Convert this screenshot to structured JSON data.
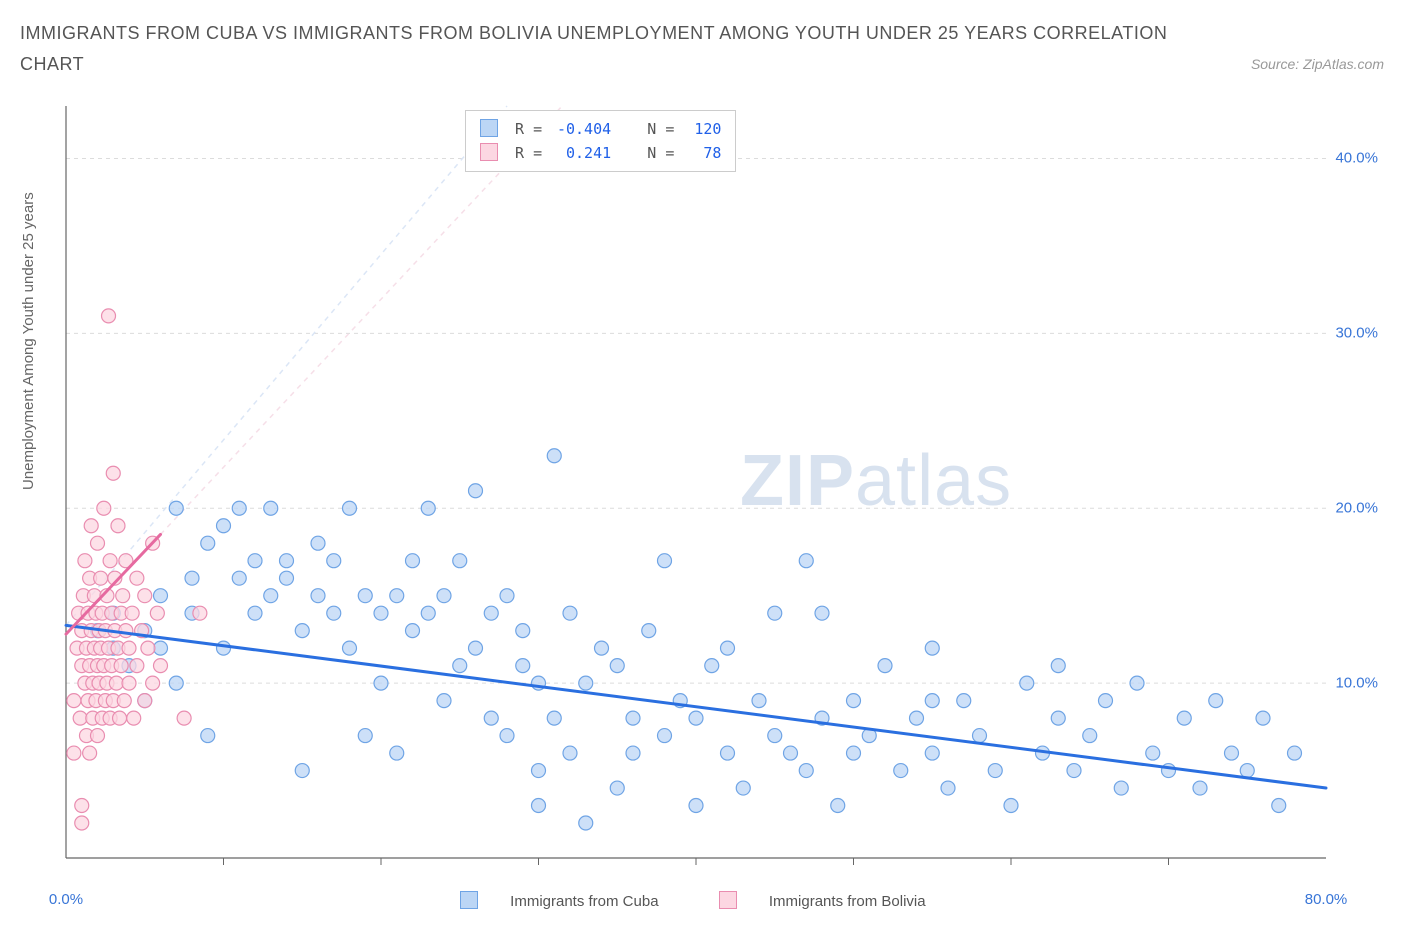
{
  "title": "IMMIGRANTS FROM CUBA VS IMMIGRANTS FROM BOLIVIA UNEMPLOYMENT AMONG YOUTH UNDER 25 YEARS CORRELATION CHART",
  "source_label": "Source: ZipAtlas.com",
  "ylabel": "Unemployment Among Youth under 25 years",
  "watermark_bold": "ZIP",
  "watermark_light": "atlas",
  "chart": {
    "type": "scatter",
    "xlim": [
      0,
      80
    ],
    "ylim": [
      0,
      43
    ],
    "xtick_labels": [
      "0.0%",
      "80.0%"
    ],
    "xtick_positions": [
      0,
      80
    ],
    "xtick_minor": [
      10,
      20,
      30,
      40,
      50,
      60,
      70
    ],
    "ytick_labels": [
      "10.0%",
      "20.0%",
      "30.0%",
      "40.0%"
    ],
    "ytick_positions": [
      10,
      20,
      30,
      40
    ],
    "axis_color": "#666666",
    "grid_color": "#dcdcdc",
    "tick_label_color": "#3875d7",
    "background_color": "#ffffff",
    "series": [
      {
        "name": "Immigrants from Cuba",
        "marker_fill": "#bcd6f5",
        "marker_stroke": "#6fa4e5",
        "marker_radius": 7,
        "trend_line_color": "#2a6fe0",
        "trend_line_width": 3,
        "trend_dash_color": "#dbe6f6",
        "trend": {
          "x1": 0,
          "y1": 13.3,
          "x2": 80,
          "y2": 4.0
        },
        "dashproj": {
          "x1": 0,
          "y1": 13.3,
          "x2": 28,
          "y2": 43
        },
        "legend_swatch_fill": "#bcd6f5",
        "legend_swatch_stroke": "#6fa4e5",
        "R": "-0.404",
        "N": "120",
        "points": [
          [
            2,
            13
          ],
          [
            3,
            12
          ],
          [
            3,
            14
          ],
          [
            4,
            11
          ],
          [
            5,
            13
          ],
          [
            5,
            9
          ],
          [
            6,
            12
          ],
          [
            6,
            15
          ],
          [
            7,
            10
          ],
          [
            7,
            20
          ],
          [
            8,
            14
          ],
          [
            8,
            16
          ],
          [
            9,
            7
          ],
          [
            9,
            18
          ],
          [
            10,
            19
          ],
          [
            10,
            12
          ],
          [
            11,
            16
          ],
          [
            11,
            20
          ],
          [
            12,
            14
          ],
          [
            12,
            17
          ],
          [
            13,
            20
          ],
          [
            13,
            15
          ],
          [
            14,
            16
          ],
          [
            14,
            17
          ],
          [
            15,
            5
          ],
          [
            15,
            13
          ],
          [
            16,
            18
          ],
          [
            16,
            15
          ],
          [
            17,
            14
          ],
          [
            17,
            17
          ],
          [
            18,
            20
          ],
          [
            18,
            12
          ],
          [
            19,
            15
          ],
          [
            19,
            7
          ],
          [
            20,
            10
          ],
          [
            20,
            14
          ],
          [
            21,
            15
          ],
          [
            21,
            6
          ],
          [
            22,
            17
          ],
          [
            22,
            13
          ],
          [
            23,
            20
          ],
          [
            23,
            14
          ],
          [
            24,
            9
          ],
          [
            24,
            15
          ],
          [
            25,
            11
          ],
          [
            25,
            17
          ],
          [
            26,
            21
          ],
          [
            26,
            12
          ],
          [
            27,
            14
          ],
          [
            27,
            8
          ],
          [
            28,
            7
          ],
          [
            28,
            15
          ],
          [
            29,
            11
          ],
          [
            29,
            13
          ],
          [
            30,
            5
          ],
          [
            30,
            10
          ],
          [
            31,
            23
          ],
          [
            31,
            8
          ],
          [
            32,
            14
          ],
          [
            32,
            6
          ],
          [
            33,
            10
          ],
          [
            33,
            2
          ],
          [
            34,
            12
          ],
          [
            35,
            4
          ],
          [
            35,
            11
          ],
          [
            36,
            8
          ],
          [
            36,
            6
          ],
          [
            37,
            13
          ],
          [
            38,
            7
          ],
          [
            38,
            17
          ],
          [
            39,
            9
          ],
          [
            40,
            8
          ],
          [
            40,
            3
          ],
          [
            41,
            11
          ],
          [
            42,
            6
          ],
          [
            42,
            12
          ],
          [
            43,
            4
          ],
          [
            44,
            9
          ],
          [
            45,
            7
          ],
          [
            45,
            14
          ],
          [
            46,
            6
          ],
          [
            47,
            5
          ],
          [
            47,
            17
          ],
          [
            48,
            8
          ],
          [
            49,
            3
          ],
          [
            50,
            9
          ],
          [
            50,
            6
          ],
          [
            51,
            7
          ],
          [
            52,
            11
          ],
          [
            53,
            5
          ],
          [
            54,
            8
          ],
          [
            55,
            6
          ],
          [
            55,
            12
          ],
          [
            56,
            4
          ],
          [
            57,
            9
          ],
          [
            58,
            7
          ],
          [
            59,
            5
          ],
          [
            60,
            3
          ],
          [
            61,
            10
          ],
          [
            62,
            6
          ],
          [
            63,
            8
          ],
          [
            64,
            5
          ],
          [
            65,
            7
          ],
          [
            66,
            9
          ],
          [
            67,
            4
          ],
          [
            68,
            10
          ],
          [
            69,
            6
          ],
          [
            70,
            5
          ],
          [
            71,
            8
          ],
          [
            72,
            4
          ],
          [
            73,
            9
          ],
          [
            74,
            6
          ],
          [
            75,
            5
          ],
          [
            76,
            8
          ],
          [
            77,
            3
          ],
          [
            78,
            6
          ],
          [
            63,
            11
          ],
          [
            55,
            9
          ],
          [
            48,
            14
          ],
          [
            30,
            3
          ]
        ]
      },
      {
        "name": "Immigrants from Bolivia",
        "marker_fill": "#fcd7e2",
        "marker_stroke": "#e98db0",
        "marker_radius": 7,
        "trend_line_color": "#e66aa0",
        "trend_line_width": 3,
        "trend_dash_color": "#f6dfe8",
        "trend": {
          "x1": 0,
          "y1": 12.8,
          "x2": 6,
          "y2": 18.5
        },
        "dashproj": {
          "x1": 6,
          "y1": 18.5,
          "x2": 31.5,
          "y2": 43
        },
        "legend_swatch_fill": "#fcd7e2",
        "legend_swatch_stroke": "#e98db0",
        "R": "0.241",
        "N": "78",
        "points": [
          [
            0.5,
            6
          ],
          [
            0.5,
            9
          ],
          [
            0.7,
            12
          ],
          [
            0.8,
            14
          ],
          [
            0.9,
            8
          ],
          [
            1.0,
            11
          ],
          [
            1.0,
            13
          ],
          [
            1.0,
            2
          ],
          [
            1.1,
            15
          ],
          [
            1.2,
            10
          ],
          [
            1.2,
            17
          ],
          [
            1.3,
            7
          ],
          [
            1.3,
            12
          ],
          [
            1.4,
            14
          ],
          [
            1.4,
            9
          ],
          [
            1.5,
            11
          ],
          [
            1.5,
            16
          ],
          [
            1.5,
            6
          ],
          [
            1.6,
            19
          ],
          [
            1.6,
            13
          ],
          [
            1.7,
            10
          ],
          [
            1.7,
            8
          ],
          [
            1.8,
            15
          ],
          [
            1.8,
            12
          ],
          [
            1.9,
            14
          ],
          [
            1.9,
            9
          ],
          [
            2.0,
            11
          ],
          [
            2.0,
            18
          ],
          [
            2.0,
            7
          ],
          [
            2.1,
            13
          ],
          [
            2.1,
            10
          ],
          [
            2.2,
            16
          ],
          [
            2.2,
            12
          ],
          [
            2.3,
            8
          ],
          [
            2.3,
            14
          ],
          [
            2.4,
            11
          ],
          [
            2.4,
            20
          ],
          [
            2.5,
            9
          ],
          [
            2.5,
            13
          ],
          [
            2.6,
            15
          ],
          [
            2.6,
            10
          ],
          [
            2.7,
            12
          ],
          [
            2.8,
            17
          ],
          [
            2.8,
            8
          ],
          [
            2.9,
            14
          ],
          [
            2.9,
            11
          ],
          [
            3.0,
            22
          ],
          [
            3.0,
            9
          ],
          [
            3.1,
            13
          ],
          [
            3.1,
            16
          ],
          [
            3.2,
            10
          ],
          [
            3.3,
            12
          ],
          [
            3.3,
            19
          ],
          [
            3.4,
            8
          ],
          [
            3.5,
            14
          ],
          [
            3.5,
            11
          ],
          [
            3.6,
            15
          ],
          [
            3.7,
            9
          ],
          [
            3.8,
            13
          ],
          [
            3.8,
            17
          ],
          [
            4.0,
            10
          ],
          [
            4.0,
            12
          ],
          [
            4.2,
            14
          ],
          [
            4.3,
            8
          ],
          [
            4.5,
            16
          ],
          [
            4.5,
            11
          ],
          [
            4.8,
            13
          ],
          [
            5.0,
            9
          ],
          [
            5.0,
            15
          ],
          [
            5.2,
            12
          ],
          [
            5.5,
            10
          ],
          [
            5.5,
            18
          ],
          [
            5.8,
            14
          ],
          [
            6.0,
            11
          ],
          [
            2.7,
            31
          ],
          [
            7.5,
            8
          ],
          [
            8.5,
            14
          ],
          [
            1.0,
            3
          ]
        ]
      }
    ],
    "legend_bottom": [
      {
        "label": "Immigrants from Cuba",
        "fill": "#bcd6f5",
        "stroke": "#6fa4e5"
      },
      {
        "label": "Immigrants from Bolivia",
        "fill": "#fcd7e2",
        "stroke": "#e98db0"
      }
    ],
    "legend_top": {
      "R_label": "R =",
      "N_label": "N ="
    }
  }
}
